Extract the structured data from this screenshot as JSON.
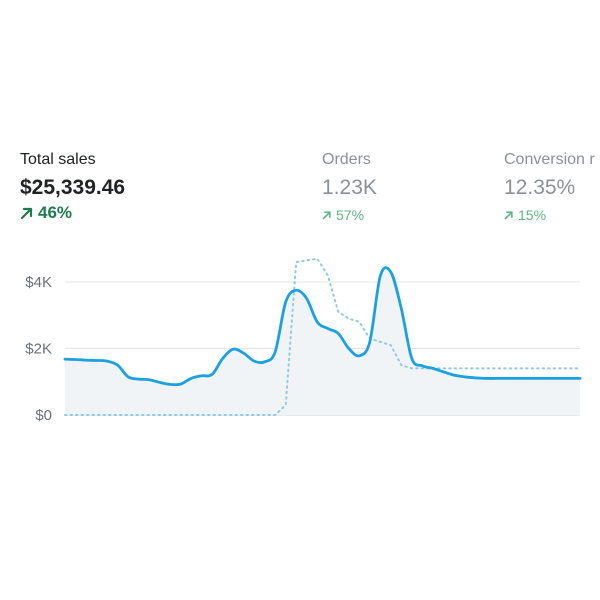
{
  "metrics": {
    "total_sales": {
      "label": "Total sales",
      "value": "$25,339.46",
      "change": "46%",
      "change_icon": "arrow-up-right-icon",
      "color": "#1f7a4f"
    },
    "orders": {
      "label": "Orders",
      "value": "1.23K",
      "change": "57%",
      "change_icon": "arrow-up-right-icon",
      "color": "#5bb48a"
    },
    "conversion": {
      "label": "Conversion r",
      "value": "12.35%",
      "change": "15%",
      "change_icon": "arrow-up-right-icon",
      "color": "#5bb48a"
    }
  },
  "chart_data": {
    "type": "line",
    "y_ticks": [
      "$4K",
      "$2K",
      "$0"
    ],
    "y_tick_values": [
      4000,
      2000,
      0
    ],
    "ylim": [
      0,
      4000
    ],
    "grid": true,
    "x": [
      0,
      1,
      2,
      3,
      4,
      5,
      6,
      7,
      8,
      9,
      10,
      11,
      12,
      13,
      14,
      15,
      16,
      17,
      18,
      19,
      20,
      21,
      22,
      23,
      24,
      25,
      26,
      27,
      28,
      29,
      30,
      31,
      32,
      33,
      34,
      35,
      36,
      37,
      38,
      39,
      40,
      41,
      42,
      43,
      44,
      45,
      46,
      47,
      48,
      49
    ],
    "series": [
      {
        "style": "solid",
        "color": "#1ba1e2",
        "values": [
          1680,
          1670,
          1650,
          1640,
          1620,
          1500,
          1150,
          1080,
          1060,
          980,
          920,
          930,
          1100,
          1180,
          1220,
          1700,
          1980,
          1860,
          1620,
          1600,
          1900,
          3400,
          3750,
          3500,
          2800,
          2600,
          2450,
          2000,
          1780,
          2200,
          4180,
          4300,
          3200,
          1700,
          1480,
          1400,
          1300,
          1200,
          1150,
          1120,
          1100,
          1100,
          1100,
          1100,
          1100,
          1100,
          1100,
          1100,
          1100,
          1100
        ]
      },
      {
        "style": "dotted",
        "color": "#8fcbe6",
        "values": [
          0,
          0,
          0,
          0,
          0,
          0,
          0,
          0,
          0,
          0,
          0,
          0,
          0,
          0,
          0,
          0,
          0,
          0,
          0,
          0,
          0,
          300,
          4600,
          4650,
          4700,
          4200,
          3100,
          2900,
          2800,
          2300,
          2200,
          2100,
          1500,
          1400,
          1400,
          1400,
          1400,
          1400,
          1400,
          1400,
          1400,
          1400,
          1400,
          1400,
          1400,
          1400,
          1400,
          1400,
          1400,
          1400
        ]
      }
    ]
  }
}
